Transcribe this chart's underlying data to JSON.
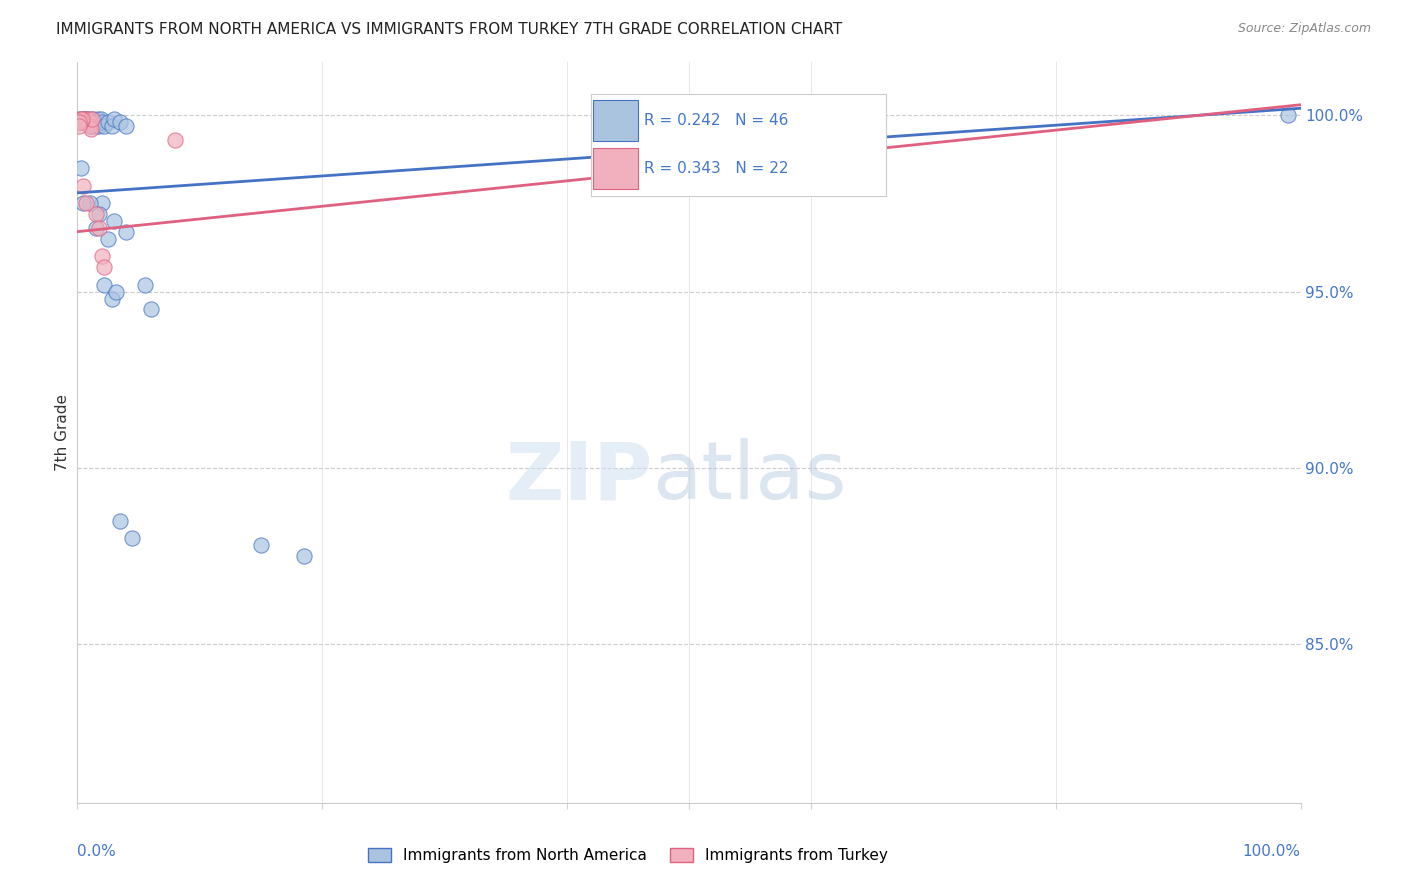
{
  "title": "IMMIGRANTS FROM NORTH AMERICA VS IMMIGRANTS FROM TURKEY 7TH GRADE CORRELATION CHART",
  "source": "Source: ZipAtlas.com",
  "ylabel": "7th Grade",
  "ylabel_right_ticks": [
    0.85,
    0.9,
    0.95,
    1.0
  ],
  "ylabel_right_labels": [
    "85.0%",
    "90.0%",
    "95.0%",
    "100.0%"
  ],
  "legend_label_1": "Immigrants from North America",
  "legend_label_2": "Immigrants from Turkey",
  "R1": 0.242,
  "N1": 46,
  "R2": 0.343,
  "N2": 22,
  "color_blue": "#aac4e0",
  "color_pink": "#f0b0be",
  "color_blue_line": "#4472c4",
  "color_pink_line": "#e06080",
  "xmin": 0.0,
  "xmax": 1.0,
  "ymin": 0.805,
  "ymax": 1.015,
  "blue_points": [
    [
      0.005,
      0.999
    ],
    [
      0.006,
      0.999
    ],
    [
      0.007,
      0.998
    ],
    [
      0.008,
      0.999
    ],
    [
      0.009,
      0.998
    ],
    [
      0.01,
      0.999
    ],
    [
      0.01,
      0.997
    ],
    [
      0.011,
      0.998
    ],
    [
      0.012,
      0.997
    ],
    [
      0.013,
      0.999
    ],
    [
      0.014,
      0.998
    ],
    [
      0.015,
      0.997
    ],
    [
      0.016,
      0.998
    ],
    [
      0.017,
      0.999
    ],
    [
      0.018,
      0.997
    ],
    [
      0.019,
      0.999
    ],
    [
      0.02,
      0.998
    ],
    [
      0.022,
      0.997
    ],
    [
      0.025,
      0.998
    ],
    [
      0.028,
      0.997
    ],
    [
      0.03,
      0.999
    ],
    [
      0.035,
      0.998
    ],
    [
      0.04,
      0.997
    ],
    [
      0.02,
      0.975
    ],
    [
      0.03,
      0.97
    ],
    [
      0.04,
      0.967
    ],
    [
      0.018,
      0.972
    ],
    [
      0.025,
      0.965
    ],
    [
      0.01,
      0.975
    ],
    [
      0.015,
      0.968
    ],
    [
      0.022,
      0.952
    ],
    [
      0.028,
      0.948
    ],
    [
      0.032,
      0.95
    ],
    [
      0.055,
      0.952
    ],
    [
      0.035,
      0.885
    ],
    [
      0.045,
      0.88
    ],
    [
      0.15,
      0.878
    ],
    [
      0.185,
      0.875
    ],
    [
      0.06,
      0.945
    ],
    [
      0.005,
      0.975
    ],
    [
      0.003,
      0.985
    ],
    [
      0.002,
      0.998
    ],
    [
      0.001,
      0.999
    ],
    [
      0.004,
      0.998
    ],
    [
      0.99,
      1.0
    ],
    [
      0.5,
      0.99
    ]
  ],
  "pink_points": [
    [
      0.005,
      0.999
    ],
    [
      0.006,
      0.998
    ],
    [
      0.007,
      0.999
    ],
    [
      0.008,
      0.998
    ],
    [
      0.009,
      0.999
    ],
    [
      0.01,
      0.998
    ],
    [
      0.01,
      0.997
    ],
    [
      0.011,
      0.996
    ],
    [
      0.012,
      0.999
    ],
    [
      0.002,
      0.999
    ],
    [
      0.003,
      0.998
    ],
    [
      0.004,
      0.999
    ],
    [
      0.001,
      0.998
    ],
    [
      0.001,
      0.997
    ],
    [
      0.015,
      0.972
    ],
    [
      0.018,
      0.968
    ],
    [
      0.02,
      0.96
    ],
    [
      0.022,
      0.957
    ],
    [
      0.005,
      0.98
    ],
    [
      0.007,
      0.975
    ],
    [
      0.65,
      1.0
    ],
    [
      0.08,
      0.993
    ]
  ],
  "trend_blue": [
    0.0,
    1.0,
    0.978,
    1.002
  ],
  "trend_pink": [
    0.0,
    1.0,
    0.967,
    1.003
  ]
}
